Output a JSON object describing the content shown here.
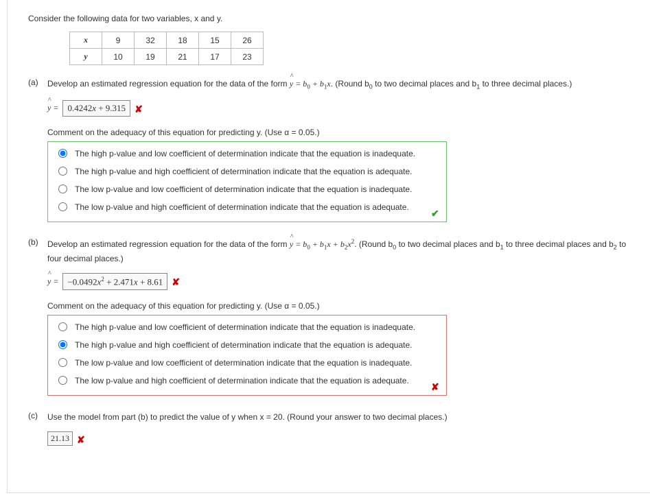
{
  "intro": "Consider the following data for two variables, x and y.",
  "table": {
    "row1_label": "x",
    "row2_label": "y",
    "x": [
      "9",
      "32",
      "18",
      "15",
      "26"
    ],
    "y": [
      "10",
      "19",
      "21",
      "17",
      "23"
    ]
  },
  "partA": {
    "label": "(a)",
    "question_pre": "Develop an estimated regression equation for the data of the form ",
    "question_post": ". (Round b",
    "question_post2": " to two decimal places and b",
    "question_post3": " to three decimal places.)",
    "yhat_prefix": "ŷ = ",
    "answer": "0.4242x + 9.315",
    "comment": "Comment on the adequacy of this equation for predicting y. (Use α = 0.05.)",
    "options": [
      "The high p-value and low coefficient of determination indicate that the equation is inadequate.",
      "The high p-value and high coefficient of determination indicate that the equation is adequate.",
      "The low p-value and low coefficient of determination indicate that the equation is inadequate.",
      "The low p-value and high coefficient of determination indicate that the equation is adequate."
    ],
    "selected": 0,
    "group_correct": true,
    "answer_wrong": true
  },
  "partB": {
    "label": "(b)",
    "question_pre": "Develop an estimated regression equation for the data of the form ",
    "question_post": ". (Round b",
    "question_post2": " to two decimal places and b",
    "question_post3": " to three decimal places and b",
    "question_post4": " to four decimal places.)",
    "yhat_prefix": "ŷ = ",
    "answer": "−0.0492x² + 2.471x + 8.61",
    "comment": "Comment on the adequacy of this equation for predicting y. (Use α = 0.05.)",
    "options": [
      "The high p-value and low coefficient of determination indicate that the equation is inadequate.",
      "The high p-value and high coefficient of determination indicate that the equation is adequate.",
      "The low p-value and low coefficient of determination indicate that the equation is inadequate.",
      "The low p-value and high coefficient of determination indicate that the equation is adequate."
    ],
    "selected": 1,
    "group_correct": false,
    "answer_wrong": true
  },
  "partC": {
    "label": "(c)",
    "question": "Use the model from part (b) to predict the value of y when x = 20. (Round your answer to two decimal places.)",
    "answer": "21.13",
    "answer_wrong": true
  }
}
